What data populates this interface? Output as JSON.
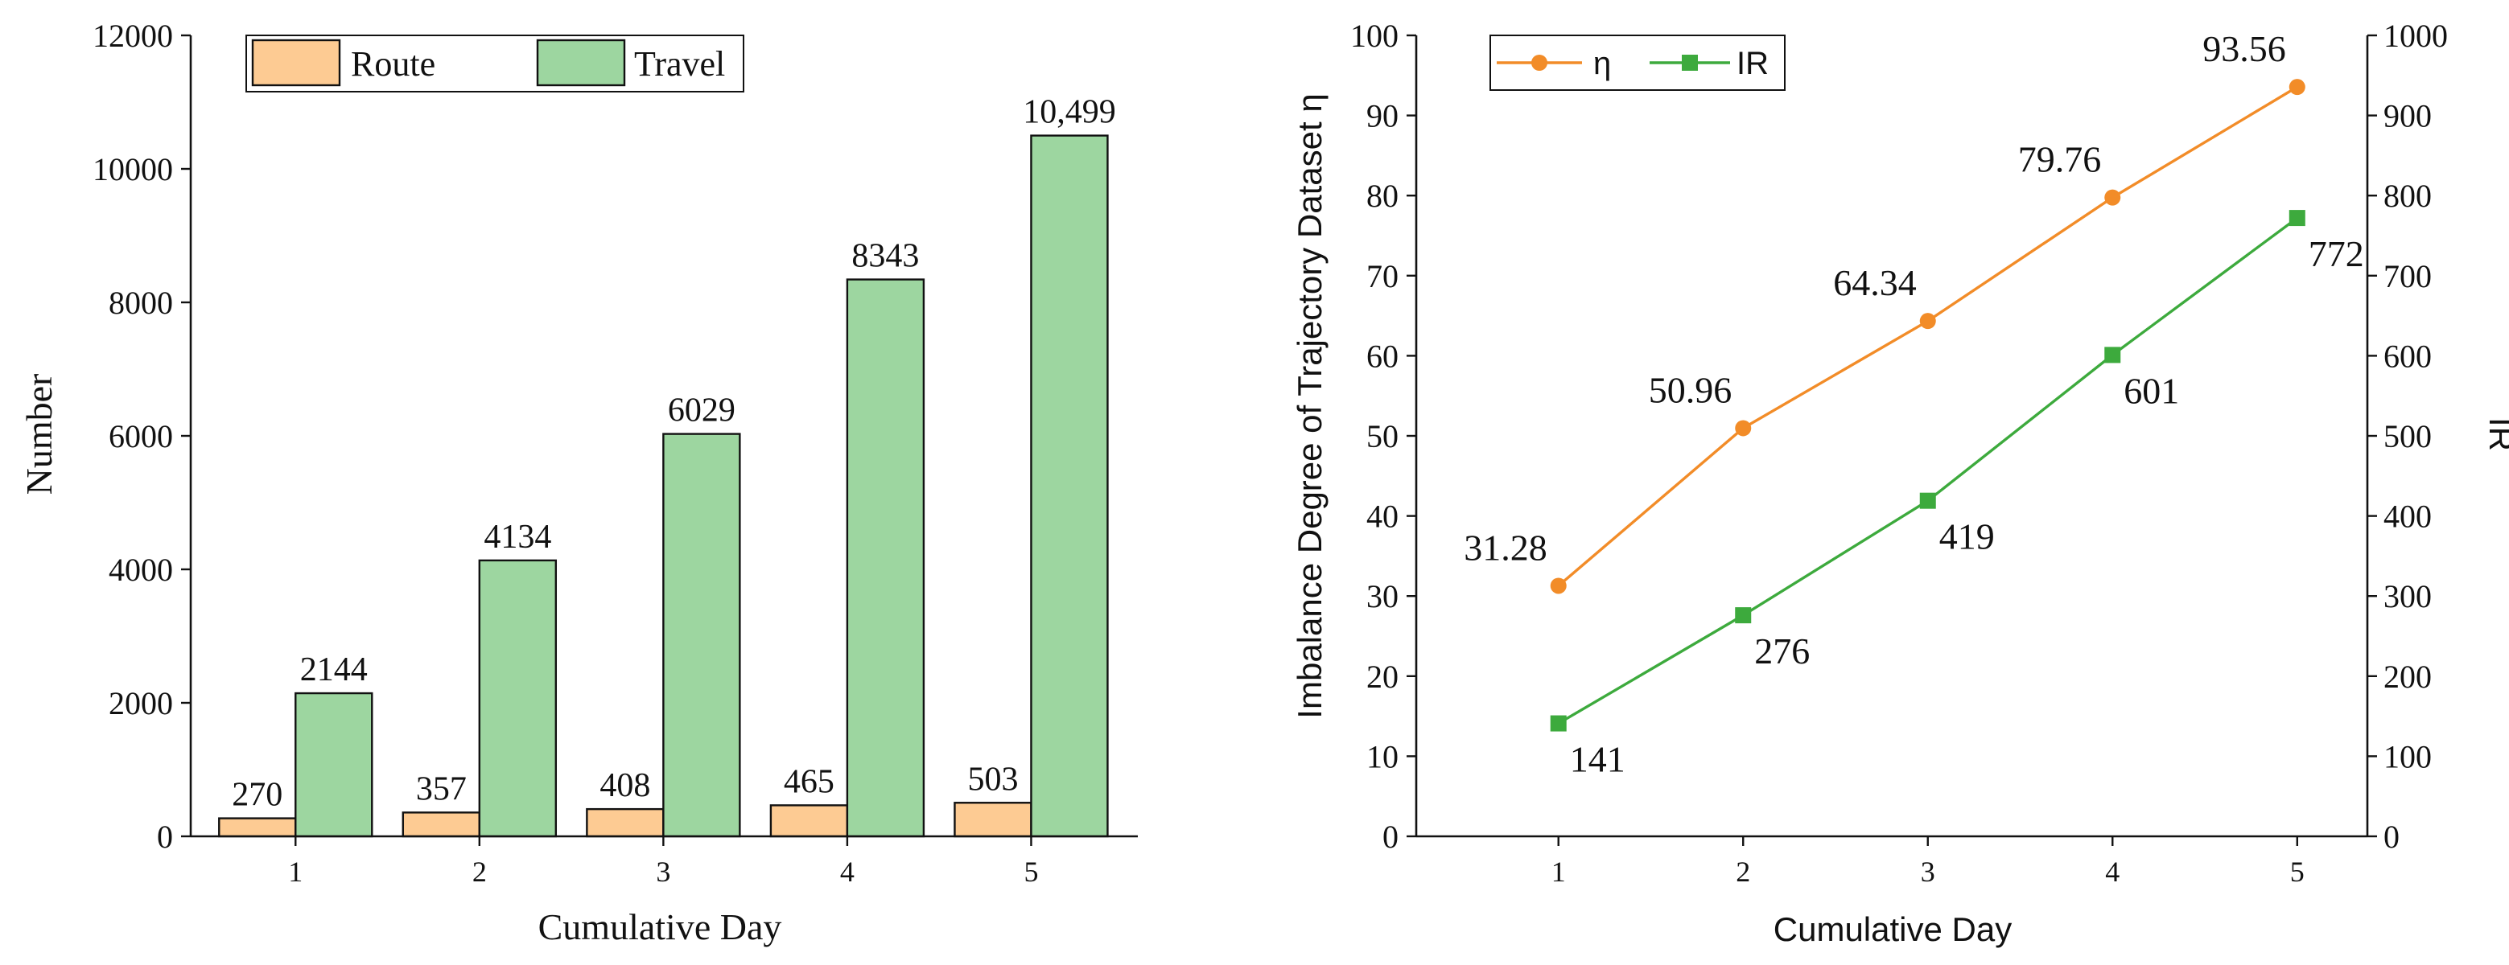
{
  "chart_data": [
    {
      "type": "bar",
      "categories": [
        "1",
        "2",
        "3",
        "4",
        "5"
      ],
      "series": [
        {
          "name": "Route",
          "values": [
            270,
            357,
            408,
            465,
            503
          ],
          "labels": [
            "270",
            "357",
            "408",
            "465",
            "503"
          ],
          "color": "#FDCB93"
        },
        {
          "name": "Travel",
          "values": [
            2144,
            4134,
            6029,
            8343,
            10499
          ],
          "labels": [
            "2144",
            "4134",
            "6029",
            "8343",
            "10,499"
          ],
          "color": "#9DD6A0"
        }
      ],
      "title": "",
      "xlabel": "Cumulative Day",
      "ylabel": "Number",
      "ylim": [
        0,
        12000
      ],
      "yticks": [
        "0",
        "2000",
        "4000",
        "6000",
        "8000",
        "10000",
        "12000"
      ],
      "legend": "top-left"
    },
    {
      "type": "line",
      "categories": [
        "1",
        "2",
        "3",
        "4",
        "5"
      ],
      "series": [
        {
          "name": "η",
          "axis": "left",
          "values": [
            31.28,
            50.96,
            64.34,
            79.76,
            93.56
          ],
          "labels": [
            "31.28",
            "50.96",
            "64.34",
            "79.76",
            "93.56"
          ],
          "color": "#F28C28",
          "marker": "circle"
        },
        {
          "name": "IR",
          "axis": "right",
          "values": [
            141,
            276,
            419,
            601,
            772
          ],
          "labels": [
            "141",
            "276",
            "419",
            "601",
            "772"
          ],
          "color": "#3DAA3D",
          "marker": "square"
        }
      ],
      "title": "",
      "xlabel": "Cumulative Day",
      "ylabel": "Imbalance Degree of Trajectory Dataset η",
      "ylabel_right": "IR",
      "ylim": [
        0,
        100
      ],
      "ylim_right": [
        0,
        1000
      ],
      "yticks": [
        "0",
        "10",
        "20",
        "30",
        "40",
        "50",
        "60",
        "70",
        "80",
        "90",
        "100"
      ],
      "yticks_right": [
        "0",
        "100",
        "200",
        "300",
        "400",
        "500",
        "600",
        "700",
        "800",
        "900",
        "1000"
      ],
      "legend": "top-left"
    }
  ]
}
